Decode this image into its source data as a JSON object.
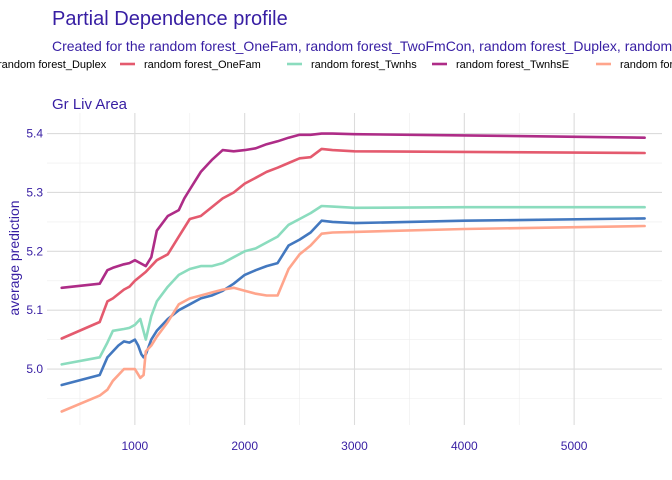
{
  "chart_data": {
    "type": "line",
    "title": "Partial Dependence profile",
    "subtitle": "Created for the random forest_OneFam, random forest_TwoFmCon, random forest_Duplex, random forest_Twnhs, random forest_TwnhsE model",
    "facet_label": "Gr  Liv  Area",
    "xlabel": "",
    "ylabel": "average prediction",
    "xlim": [
      200,
      5800
    ],
    "ylim": [
      4.905,
      5.435
    ],
    "x_ticks": [
      1000,
      2000,
      3000,
      4000,
      5000
    ],
    "x_tick_labels": [
      "1000",
      "2000",
      "3000",
      "4000",
      "5000"
    ],
    "y_ticks": [
      5.0,
      5.1,
      5.2,
      5.3,
      5.4
    ],
    "y_tick_labels": [
      "5.0",
      "5.1",
      "5.2",
      "5.3",
      "5.4"
    ],
    "grid": true,
    "legend_position": "top",
    "legend_entries_visible": [
      "random forest_Duplex",
      "random forest_OneFam",
      "random forest_Twnhs",
      "random forest_TwnhsE",
      "random forest_TwoFmCon"
    ],
    "series": [
      {
        "name": "random forest_Duplex",
        "color": "#4378bf",
        "x": [
          334,
          680,
          750,
          800,
          850,
          900,
          950,
          1000,
          1030,
          1060,
          1080,
          1100,
          1150,
          1200,
          1250,
          1300,
          1400,
          1500,
          1600,
          1700,
          1800,
          1900,
          2000,
          2100,
          2200,
          2300,
          2400,
          2500,
          2600,
          2700,
          2800,
          3000,
          4000,
          5642
        ],
        "y": [
          4.973,
          4.99,
          5.02,
          5.03,
          5.04,
          5.047,
          5.045,
          5.05,
          5.04,
          5.025,
          5.02,
          5.025,
          5.05,
          5.065,
          5.075,
          5.085,
          5.1,
          5.11,
          5.12,
          5.125,
          5.133,
          5.145,
          5.16,
          5.168,
          5.175,
          5.18,
          5.21,
          5.22,
          5.232,
          5.252,
          5.25,
          5.248,
          5.252,
          5.256
        ]
      },
      {
        "name": "random forest_OneFam",
        "color": "#e45a6e",
        "x": [
          334,
          680,
          750,
          800,
          900,
          950,
          1000,
          1100,
          1200,
          1300,
          1400,
          1500,
          1600,
          1700,
          1800,
          1900,
          2000,
          2100,
          2200,
          2300,
          2400,
          2500,
          2600,
          2700,
          2800,
          3000,
          4000,
          5642
        ],
        "y": [
          5.052,
          5.08,
          5.115,
          5.12,
          5.135,
          5.14,
          5.15,
          5.165,
          5.185,
          5.195,
          5.225,
          5.255,
          5.26,
          5.275,
          5.29,
          5.3,
          5.315,
          5.325,
          5.335,
          5.342,
          5.35,
          5.358,
          5.36,
          5.374,
          5.372,
          5.37,
          5.369,
          5.367
        ]
      },
      {
        "name": "random forest_Twnhs",
        "color": "#8bdcbe",
        "x": [
          334,
          680,
          750,
          800,
          900,
          950,
          1000,
          1050,
          1100,
          1150,
          1200,
          1300,
          1400,
          1500,
          1600,
          1700,
          1800,
          1900,
          2000,
          2100,
          2200,
          2300,
          2400,
          2500,
          2600,
          2700,
          2800,
          3000,
          4000,
          5642
        ],
        "y": [
          5.008,
          5.02,
          5.045,
          5.065,
          5.068,
          5.07,
          5.075,
          5.085,
          5.05,
          5.09,
          5.115,
          5.14,
          5.16,
          5.17,
          5.175,
          5.175,
          5.18,
          5.19,
          5.2,
          5.205,
          5.215,
          5.225,
          5.245,
          5.255,
          5.265,
          5.277,
          5.276,
          5.274,
          5.275,
          5.275
        ]
      },
      {
        "name": "random forest_TwnhsE",
        "color": "#ae2c87",
        "x": [
          334,
          680,
          750,
          800,
          900,
          950,
          1000,
          1050,
          1100,
          1150,
          1200,
          1300,
          1400,
          1450,
          1500,
          1550,
          1600,
          1700,
          1800,
          1900,
          2000,
          2100,
          2200,
          2300,
          2400,
          2500,
          2600,
          2700,
          2800,
          3000,
          4000,
          5642
        ],
        "y": [
          5.138,
          5.145,
          5.168,
          5.172,
          5.178,
          5.18,
          5.185,
          5.18,
          5.175,
          5.19,
          5.235,
          5.26,
          5.27,
          5.29,
          5.305,
          5.32,
          5.335,
          5.355,
          5.372,
          5.37,
          5.372,
          5.375,
          5.382,
          5.387,
          5.393,
          5.398,
          5.398,
          5.4,
          5.4,
          5.399,
          5.397,
          5.393
        ]
      },
      {
        "name": "random forest_TwoFmCon",
        "color": "#ffa58c",
        "x": [
          334,
          680,
          750,
          800,
          900,
          950,
          1000,
          1050,
          1080,
          1100,
          1150,
          1200,
          1300,
          1400,
          1500,
          1600,
          1700,
          1800,
          1900,
          2000,
          2100,
          2200,
          2300,
          2400,
          2500,
          2600,
          2700,
          2800,
          3000,
          4000,
          5642
        ],
        "y": [
          4.928,
          4.955,
          4.965,
          4.98,
          5.0,
          5.0,
          5.0,
          4.985,
          4.99,
          5.03,
          5.04,
          5.055,
          5.08,
          5.11,
          5.12,
          5.125,
          5.13,
          5.135,
          5.138,
          5.133,
          5.128,
          5.125,
          5.125,
          5.17,
          5.195,
          5.21,
          5.23,
          5.232,
          5.233,
          5.238,
          5.243
        ]
      }
    ]
  }
}
